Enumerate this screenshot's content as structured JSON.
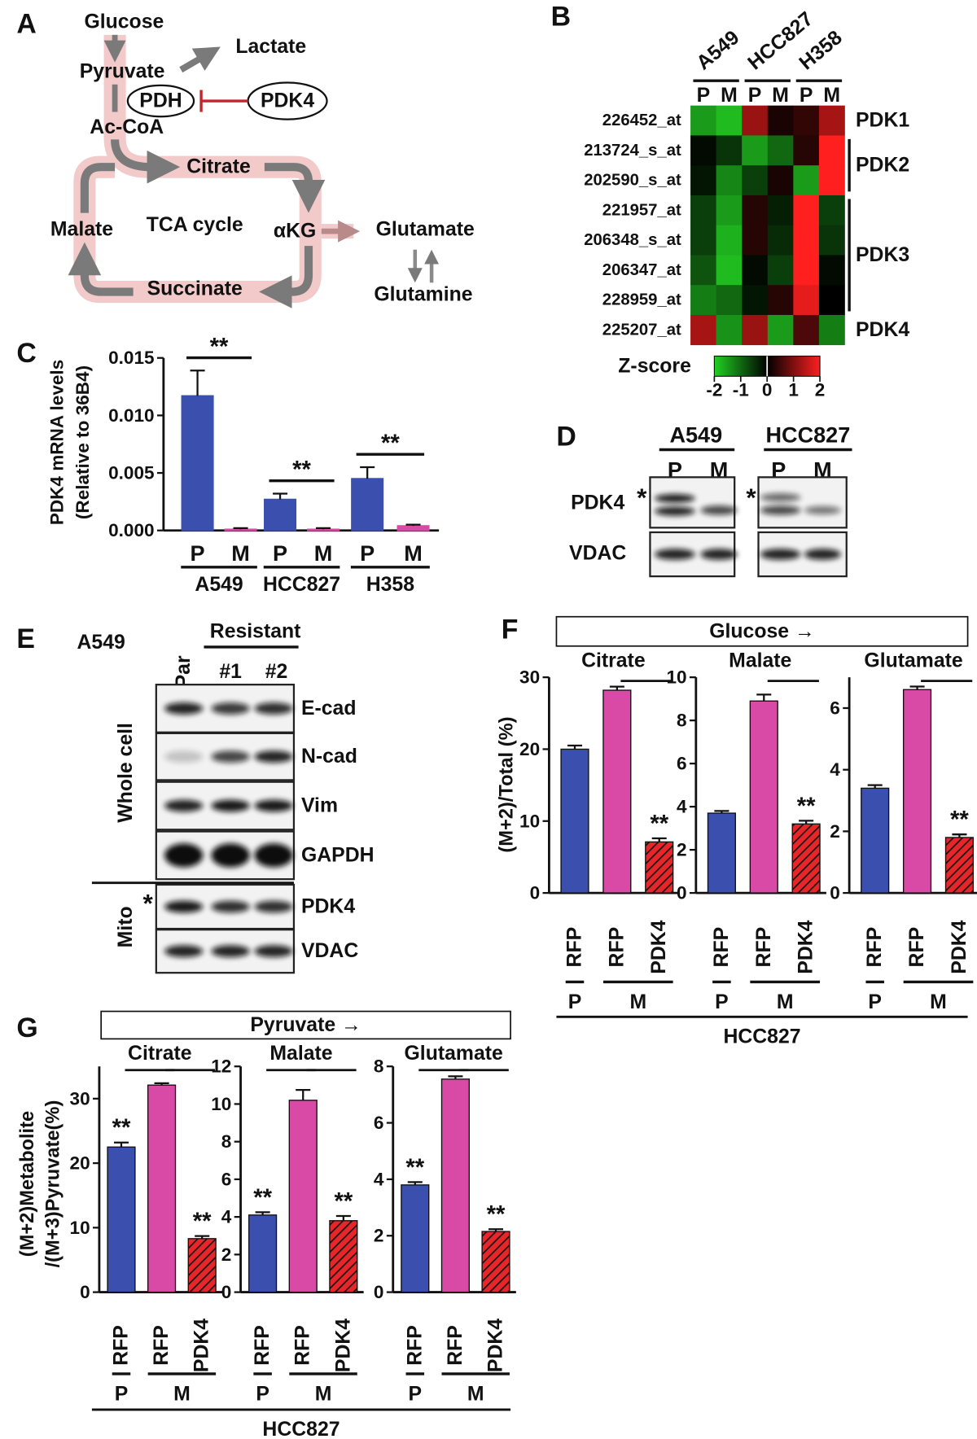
{
  "panel_labels": [
    "A",
    "B",
    "C",
    "D",
    "E",
    "F",
    "G"
  ],
  "diagram": {
    "nodes": {
      "glucose": "Glucose",
      "lactate": "Lactate",
      "pyruvate": "Pyruvate",
      "pdh": "PDH",
      "pdk4": "PDK4",
      "accoa": "Ac-CoA",
      "citrate": "Citrate",
      "malate": "Malate",
      "cycle": "TCA cycle",
      "akg": "αKG",
      "glutamate": "Glutamate",
      "succinate": "Succinate",
      "glutamine": "Glutamine"
    }
  },
  "chart_data": [
    {
      "type": "heatmap",
      "column_groups": [
        "A549",
        "HCC827",
        "H358"
      ],
      "columns": [
        "P",
        "M",
        "P",
        "M",
        "P",
        "M"
      ],
      "column_colors": [
        "#3a4fae",
        "#9c4db3",
        "#3a4fae",
        "#9c4db3",
        "#3a4fae",
        "#9c4db3"
      ],
      "rows": [
        "226452_at",
        "213724_s_at",
        "202590_s_at",
        "221957_at",
        "206348_s_at",
        "206347_at",
        "228959_at",
        "225207_at"
      ],
      "row_groups": [
        "PDK1",
        "PDK2",
        "PDK3",
        "PDK4"
      ],
      "values": [
        [
          -1.5,
          -1.8,
          1.2,
          0.2,
          0.4,
          1.3
        ],
        [
          -0.1,
          -0.5,
          -1.5,
          -1.0,
          0.3,
          2.0
        ],
        [
          -0.2,
          -1.3,
          -0.6,
          0.2,
          -1.5,
          2.0
        ],
        [
          -0.6,
          -1.5,
          0.3,
          -0.3,
          2.0,
          -0.6
        ],
        [
          -0.6,
          -1.7,
          0.3,
          -0.4,
          2.0,
          -0.5
        ],
        [
          -0.8,
          -1.8,
          -0.1,
          -0.6,
          2.0,
          -0.1
        ],
        [
          -1.2,
          -1.0,
          -0.2,
          0.3,
          1.8,
          0.0
        ],
        [
          1.3,
          -1.4,
          1.2,
          -1.5,
          0.6,
          -1.2
        ]
      ],
      "colorbar_label": "Z-score",
      "zlim": [
        -2,
        2
      ],
      "zticks": [
        -2,
        -1,
        0,
        1,
        2
      ],
      "colors": [
        "#22d022",
        "#000000",
        "#ff1f1f"
      ]
    },
    {
      "type": "bar",
      "ylabel": [
        "PDK4 mRNA  levels",
        "(Relative to 36B4)"
      ],
      "categories": [
        "P",
        "M",
        "P",
        "M",
        "P",
        "M"
      ],
      "label_colors": [
        "#3a4fae",
        "#9c4db3",
        "#3a4fae",
        "#9c4db3",
        "#3a4fae",
        "#9c4db3"
      ],
      "groups": [
        "A549",
        "HCC827",
        "H358"
      ],
      "values": [
        0.0117,
        0.0001,
        0.0027,
        0.0001,
        0.0045,
        0.0004
      ],
      "errors": [
        0.0022,
        0.0001,
        0.0005,
        0.0001,
        0.001,
        0.0001
      ],
      "colors": [
        "#3a4fae",
        "#d94aa6",
        "#3a4fae",
        "#d94aa6",
        "#3a4fae",
        "#d94aa6"
      ],
      "ylim": [
        0,
        0.015
      ],
      "yticks": [
        {
          "value": 0,
          "label": "0.000"
        },
        {
          "value": 0.005,
          "label": "0.005"
        },
        {
          "value": 0.01,
          "label": "0.010"
        },
        {
          "value": 0.015,
          "label": "0.015"
        }
      ],
      "significance": [
        "**",
        "**",
        "**"
      ]
    },
    {
      "type": "bar",
      "header": "Glucose →",
      "ylabel": [
        "(M+2)/Total (%)"
      ],
      "categories": [
        "RFP",
        "RFP",
        "PDK4"
      ],
      "groups": [
        "P",
        "M"
      ],
      "group_colors": [
        "#3a4fae",
        "#9c4db3"
      ],
      "footer": "HCC827",
      "colors": [
        "#3a4fae",
        "#d94aa6",
        "#e8262a"
      ],
      "hatched": [
        false,
        false,
        true
      ],
      "significance": [
        null,
        null,
        "**"
      ],
      "subplots": [
        {
          "title": "Citrate",
          "ylim": [
            0,
            30
          ],
          "yticks": [
            0,
            10,
            20,
            30
          ],
          "values": [
            20,
            28.2,
            7.1
          ],
          "errors": [
            0.5,
            0.5,
            0.5
          ]
        },
        {
          "title": "Malate",
          "ylim": [
            0,
            10
          ],
          "yticks": [
            0,
            2,
            4,
            6,
            8,
            10
          ],
          "values": [
            3.7,
            8.9,
            3.2
          ],
          "errors": [
            0.1,
            0.3,
            0.15
          ]
        },
        {
          "title": "Glutamate",
          "ylim": [
            0,
            7
          ],
          "yticks": [
            0,
            2,
            4,
            6
          ],
          "values": [
            3.4,
            6.6,
            1.8
          ],
          "errors": [
            0.1,
            0.1,
            0.1
          ]
        }
      ]
    },
    {
      "type": "bar",
      "header": "Pyruvate →",
      "ylabel": [
        "(M+2)Metabolite",
        "/(M+3)Pyruvate(%)"
      ],
      "categories": [
        "RFP",
        "RFP",
        "PDK4"
      ],
      "groups": [
        "P",
        "M"
      ],
      "group_colors": [
        "#3a4fae",
        "#9c4db3"
      ],
      "footer": "HCC827",
      "colors": [
        "#3a4fae",
        "#d94aa6",
        "#e8262a"
      ],
      "hatched": [
        false,
        false,
        true
      ],
      "significance": [
        "**",
        null,
        "**"
      ],
      "subplots": [
        {
          "title": "Citrate",
          "ylim": [
            0,
            35
          ],
          "yticks": [
            0,
            10,
            20,
            30
          ],
          "values": [
            22.5,
            32.1,
            8.3
          ],
          "errors": [
            0.7,
            0.3,
            0.4
          ]
        },
        {
          "title": "Malate",
          "ylim": [
            0,
            12
          ],
          "yticks": [
            0,
            2,
            4,
            6,
            8,
            10,
            12
          ],
          "values": [
            4.1,
            10.2,
            3.8
          ],
          "errors": [
            0.15,
            0.55,
            0.25
          ]
        },
        {
          "title": "Glutamate",
          "ylim": [
            0,
            8
          ],
          "yticks": [
            0,
            2,
            4,
            6,
            8
          ],
          "values": [
            3.8,
            7.55,
            2.15
          ],
          "errors": [
            0.1,
            0.1,
            0.08
          ]
        }
      ]
    }
  ],
  "blots": {
    "D": {
      "cell_lines": [
        "A549",
        "HCC827"
      ],
      "lanes": [
        "P",
        "M",
        "P",
        "M"
      ],
      "lane_colors": [
        "#3a4fae",
        "#9c4db3",
        "#3a4fae",
        "#9c4db3"
      ],
      "proteins": [
        "PDK4",
        "VDAC"
      ],
      "marker": "*"
    },
    "E": {
      "cell_line": "A549",
      "lane_group": "Resistant",
      "lanes": [
        "Par",
        "#1",
        "#2"
      ],
      "fractions": [
        "Whole cell",
        "Mito"
      ],
      "proteins": [
        "E-cad",
        "N-cad",
        "Vim",
        "GAPDH",
        "PDK4",
        "VDAC"
      ],
      "marker": "*"
    }
  }
}
